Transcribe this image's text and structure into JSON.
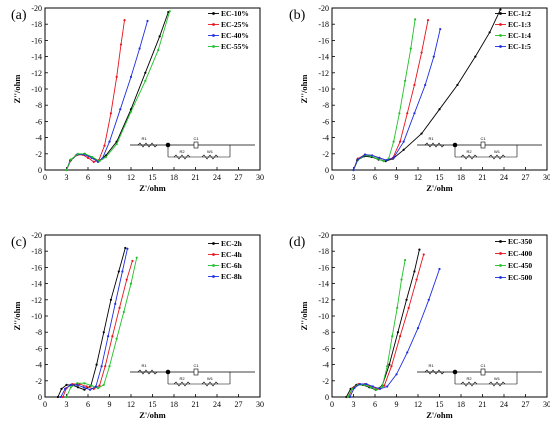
{
  "chart_data": [
    {
      "type": "line",
      "panel_label": "(a)",
      "xlabel": "Z'/ohm",
      "ylabel": "Z''/ohm",
      "xlim": [
        0,
        30
      ],
      "ylim": [
        0,
        -20
      ],
      "xticks": [
        "0",
        "3",
        "6",
        "9",
        "12",
        "15",
        "18",
        "21",
        "24",
        "27",
        "30"
      ],
      "yticks": [
        "0",
        "-2",
        "-4",
        "-6",
        "-8",
        "-10",
        "-12",
        "-14",
        "-16",
        "-18",
        "-20"
      ],
      "legend_position": "top-right",
      "circuit_labels": [
        "R1",
        "C1",
        "R2",
        "W1"
      ],
      "series": [
        {
          "name": "EC-10%",
          "color": "#000000",
          "x": [
            3.0,
            3.6,
            4.5,
            5.5,
            6.5,
            7.5,
            8.5,
            10.0,
            12.0,
            14.0,
            16.0,
            17.2
          ],
          "y": [
            0.0,
            -1.2,
            -1.9,
            -2.0,
            -1.6,
            -1.1,
            -1.8,
            -3.5,
            -7.5,
            -12.0,
            -16.5,
            -19.5
          ]
        },
        {
          "name": "EC-25%",
          "color": "#e8141c",
          "x": [
            3.0,
            3.5,
            4.3,
            5.2,
            6.0,
            6.8,
            7.5,
            8.3,
            9.2,
            10.0,
            10.6,
            11.1
          ],
          "y": [
            0.0,
            -1.1,
            -1.8,
            -1.9,
            -1.5,
            -1.0,
            -1.2,
            -3.0,
            -7.0,
            -11.5,
            -15.5,
            -18.5
          ]
        },
        {
          "name": "EC-40%",
          "color": "#1e2ee0",
          "x": [
            3.0,
            3.5,
            4.5,
            5.5,
            6.5,
            7.4,
            8.0,
            9.0,
            10.5,
            12.0,
            13.2,
            14.3
          ],
          "y": [
            0.0,
            -1.2,
            -1.9,
            -1.9,
            -1.5,
            -1.0,
            -1.4,
            -3.5,
            -7.5,
            -11.5,
            -15.0,
            -18.4
          ]
        },
        {
          "name": "EC-55%",
          "color": "#22c02a",
          "x": [
            3.0,
            3.6,
            4.6,
            5.6,
            6.6,
            7.6,
            8.5,
            10.0,
            12.0,
            14.0,
            15.8,
            17.4
          ],
          "y": [
            0.0,
            -1.3,
            -2.0,
            -2.0,
            -1.6,
            -1.1,
            -1.6,
            -3.2,
            -7.2,
            -11.0,
            -14.8,
            -19.6
          ]
        }
      ]
    },
    {
      "type": "line",
      "panel_label": "(b)",
      "xlabel": "Z'/ohm",
      "ylabel": "Z''/ohm",
      "xlim": [
        0,
        30
      ],
      "ylim": [
        0,
        -20
      ],
      "xticks": [
        "0",
        "3",
        "6",
        "9",
        "12",
        "15",
        "18",
        "21",
        "24",
        "27",
        "30"
      ],
      "yticks": [
        "0",
        "-2",
        "-4",
        "-6",
        "-8",
        "-10",
        "-12",
        "-14",
        "-16",
        "-18",
        "-20"
      ],
      "legend_position": "top-right",
      "circuit_labels": [
        "R1",
        "C1",
        "R2",
        "W1"
      ],
      "series": [
        {
          "name": "EC-1:2",
          "color": "#000000",
          "x": [
            3.0,
            3.5,
            4.5,
            5.5,
            6.5,
            7.5,
            8.5,
            10.0,
            12.5,
            15.0,
            17.5,
            20.0,
            22.0,
            23.5
          ],
          "y": [
            0.0,
            -1.2,
            -1.7,
            -1.6,
            -1.3,
            -1.1,
            -1.4,
            -2.5,
            -4.5,
            -7.5,
            -10.5,
            -14.0,
            -17.0,
            -19.8
          ]
        },
        {
          "name": "EC-1:3",
          "color": "#e8141c",
          "x": [
            3.0,
            3.6,
            4.6,
            5.6,
            6.6,
            7.6,
            8.5,
            9.5,
            10.5,
            11.5,
            12.5,
            13.4
          ],
          "y": [
            0.0,
            -1.4,
            -1.9,
            -1.8,
            -1.5,
            -1.2,
            -1.5,
            -3.5,
            -7.0,
            -10.5,
            -14.5,
            -18.5
          ]
        },
        {
          "name": "EC-1:4",
          "color": "#22c02a",
          "x": [
            3.0,
            3.6,
            4.5,
            5.4,
            6.3,
            7.2,
            7.9,
            8.6,
            9.4,
            10.2,
            11.0,
            11.6
          ],
          "y": [
            0.0,
            -1.2,
            -1.8,
            -1.7,
            -1.4,
            -1.1,
            -1.4,
            -3.5,
            -7.0,
            -11.0,
            -15.0,
            -18.6
          ]
        },
        {
          "name": "EC-1:5",
          "color": "#1e2ee0",
          "x": [
            3.0,
            3.6,
            4.6,
            5.6,
            6.6,
            7.6,
            8.6,
            10.0,
            11.5,
            13.0,
            14.2,
            15.1
          ],
          "y": [
            0.0,
            -1.3,
            -1.9,
            -1.8,
            -1.5,
            -1.2,
            -1.5,
            -3.5,
            -7.0,
            -10.5,
            -14.0,
            -17.4
          ]
        }
      ]
    },
    {
      "type": "line",
      "panel_label": "(c)",
      "xlabel": "Z'/ohm",
      "ylabel": "Z''/ohm",
      "xlim": [
        0,
        30
      ],
      "ylim": [
        0,
        -20
      ],
      "xticks": [
        "0",
        "3",
        "6",
        "9",
        "12",
        "15",
        "18",
        "21",
        "24",
        "27",
        "30"
      ],
      "yticks": [
        "0",
        "-2",
        "-4",
        "-6",
        "-8",
        "-10",
        "-12",
        "-14",
        "-16",
        "-18",
        "-20"
      ],
      "legend_position": "top-right",
      "circuit_labels": [
        "R1",
        "C1",
        "R2",
        "W1"
      ],
      "series": [
        {
          "name": "EC-2h",
          "color": "#000000",
          "x": [
            1.8,
            2.3,
            3.0,
            3.8,
            4.6,
            5.5,
            6.4,
            7.2,
            8.2,
            9.2,
            10.3,
            11.2
          ],
          "y": [
            0.0,
            -1.0,
            -1.5,
            -1.5,
            -1.2,
            -0.9,
            -1.4,
            -4.0,
            -8.0,
            -12.0,
            -15.5,
            -18.4
          ]
        },
        {
          "name": "EC-4h",
          "color": "#e8141c",
          "x": [
            2.5,
            3.0,
            3.8,
            4.8,
            5.8,
            6.8,
            7.6,
            8.4,
            9.4,
            10.4,
            11.4,
            12.2
          ],
          "y": [
            0.0,
            -1.1,
            -1.6,
            -1.6,
            -1.3,
            -1.0,
            -1.4,
            -3.8,
            -7.5,
            -11.0,
            -14.5,
            -16.8
          ]
        },
        {
          "name": "EC-6h",
          "color": "#22c02a",
          "x": [
            3.0,
            3.6,
            4.5,
            5.5,
            6.5,
            7.4,
            8.2,
            9.0,
            10.0,
            11.0,
            12.0,
            12.8
          ],
          "y": [
            0.0,
            -1.2,
            -1.7,
            -1.7,
            -1.4,
            -1.1,
            -1.5,
            -3.8,
            -7.2,
            -10.5,
            -14.0,
            -17.2
          ]
        },
        {
          "name": "EC-8h",
          "color": "#1e2ee0",
          "x": [
            2.2,
            2.8,
            3.6,
            4.5,
            5.4,
            6.3,
            7.1,
            7.9,
            8.8,
            9.8,
            10.8,
            11.5
          ],
          "y": [
            0.0,
            -1.0,
            -1.5,
            -1.5,
            -1.2,
            -0.9,
            -1.3,
            -3.8,
            -7.5,
            -11.5,
            -15.5,
            -18.3
          ]
        }
      ]
    },
    {
      "type": "line",
      "panel_label": "(d)",
      "xlabel": "Z'/ohm",
      "ylabel": "Z''/ohm",
      "xlim": [
        0,
        30
      ],
      "ylim": [
        0,
        -20
      ],
      "xticks": [
        "0",
        "3",
        "6",
        "9",
        "12",
        "15",
        "18",
        "21",
        "24",
        "27",
        "30"
      ],
      "yticks": [
        "0",
        "-2",
        "-4",
        "-6",
        "-8",
        "-10",
        "-12",
        "-14",
        "-16",
        "-18",
        "-20"
      ],
      "legend_position": "top-right",
      "circuit_labels": [
        "R1",
        "C1",
        "R2",
        "W1"
      ],
      "series": [
        {
          "name": "EC-350",
          "color": "#000000",
          "x": [
            2.0,
            2.6,
            3.4,
            4.3,
            5.2,
            6.1,
            7.0,
            8.0,
            9.2,
            10.4,
            11.5,
            12.2
          ],
          "y": [
            0.0,
            -1.0,
            -1.5,
            -1.5,
            -1.2,
            -0.9,
            -1.4,
            -4.0,
            -8.0,
            -12.0,
            -15.5,
            -18.2
          ]
        },
        {
          "name": "EC-400",
          "color": "#e8141c",
          "x": [
            2.3,
            2.9,
            3.7,
            4.6,
            5.5,
            6.4,
            7.3,
            8.3,
            9.5,
            10.7,
            11.8,
            12.8
          ],
          "y": [
            0.0,
            -1.1,
            -1.6,
            -1.6,
            -1.3,
            -1.0,
            -1.4,
            -3.8,
            -7.5,
            -11.0,
            -14.5,
            -17.6
          ]
        },
        {
          "name": "EC-450",
          "color": "#22c02a",
          "x": [
            2.2,
            2.8,
            3.6,
            4.5,
            5.4,
            6.2,
            7.0,
            7.7,
            8.4,
            9.1,
            9.7,
            10.2
          ],
          "y": [
            0.0,
            -1.0,
            -1.5,
            -1.5,
            -1.2,
            -0.9,
            -1.3,
            -3.8,
            -7.5,
            -11.0,
            -14.5,
            -16.9
          ]
        },
        {
          "name": "EC-500",
          "color": "#1e2ee0",
          "x": [
            2.5,
            3.1,
            3.9,
            4.8,
            5.7,
            6.7,
            7.7,
            9.0,
            10.5,
            12.0,
            13.5,
            15.0
          ],
          "y": [
            0.0,
            -1.1,
            -1.6,
            -1.6,
            -1.3,
            -1.0,
            -1.3,
            -2.8,
            -5.5,
            -8.5,
            -12.0,
            -15.8
          ]
        }
      ]
    }
  ]
}
